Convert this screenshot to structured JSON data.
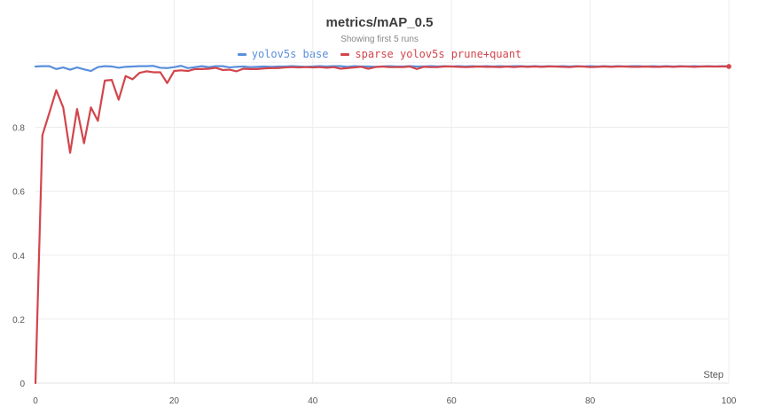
{
  "chart_data": {
    "type": "line",
    "title": "metrics/mAP_0.5",
    "subtitle": "Showing first 5 runs",
    "xlabel": "Step",
    "ylabel": "",
    "xlim": [
      0,
      100
    ],
    "ylim": [
      0,
      1.0
    ],
    "xticks": [
      0,
      20,
      40,
      60,
      80,
      100
    ],
    "yticks": [
      0,
      0.2,
      0.4,
      0.6,
      0.8
    ],
    "grid": true,
    "legend_position": "top-center",
    "series": [
      {
        "name": "yolov5s base",
        "color": "#5a8fdc",
        "x": [
          0,
          1,
          2,
          3,
          4,
          5,
          6,
          7,
          8,
          9,
          10,
          11,
          12,
          13,
          14,
          15,
          16,
          17,
          18,
          19,
          20,
          21,
          22,
          23,
          24,
          25,
          26,
          27,
          28,
          29,
          30,
          31,
          32,
          33,
          34,
          35,
          36,
          37,
          38,
          39,
          40,
          41,
          42,
          43,
          44,
          45,
          46,
          47,
          48,
          49,
          50,
          51,
          52,
          53,
          54,
          55,
          56,
          57,
          58,
          59,
          60,
          61,
          62,
          63,
          64,
          65,
          66,
          67,
          68,
          69,
          70,
          71,
          72,
          73,
          74,
          75,
          76,
          77,
          78,
          79,
          80,
          81,
          82,
          83,
          84,
          85,
          86,
          87,
          88,
          89,
          90,
          91,
          92,
          93,
          94,
          95,
          96,
          97,
          98,
          99,
          100
        ],
        "values": [
          0.99,
          0.991,
          0.991,
          0.982,
          0.987,
          0.98,
          0.987,
          0.981,
          0.976,
          0.988,
          0.991,
          0.99,
          0.986,
          0.989,
          0.99,
          0.991,
          0.991,
          0.992,
          0.986,
          0.985,
          0.988,
          0.992,
          0.985,
          0.988,
          0.991,
          0.988,
          0.991,
          0.991,
          0.987,
          0.989,
          0.99,
          0.988,
          0.989,
          0.99,
          0.989,
          0.99,
          0.99,
          0.991,
          0.99,
          0.989,
          0.99,
          0.991,
          0.99,
          0.991,
          0.991,
          0.989,
          0.991,
          0.99,
          0.99,
          0.989,
          0.99,
          0.991,
          0.99,
          0.99,
          0.991,
          0.99,
          0.99,
          0.991,
          0.99,
          0.991,
          0.99,
          0.991,
          0.99,
          0.991,
          0.99,
          0.991,
          0.99,
          0.991,
          0.99,
          0.991,
          0.991,
          0.99,
          0.991,
          0.99,
          0.991,
          0.99,
          0.991,
          0.99,
          0.991,
          0.99,
          0.991,
          0.99,
          0.991,
          0.99,
          0.991,
          0.99,
          0.991,
          0.991,
          0.99,
          0.991,
          0.99,
          0.991,
          0.99,
          0.991,
          0.99,
          0.991,
          0.99,
          0.991,
          0.99,
          0.991,
          0.991
        ]
      },
      {
        "name": "sparse yolov5s prune+quant",
        "color": "#d2454c",
        "x": [
          0,
          1,
          2,
          3,
          4,
          5,
          6,
          7,
          8,
          9,
          10,
          11,
          12,
          13,
          14,
          15,
          16,
          17,
          18,
          19,
          20,
          21,
          22,
          23,
          24,
          25,
          26,
          27,
          28,
          29,
          30,
          31,
          32,
          33,
          34,
          35,
          36,
          37,
          38,
          39,
          40,
          41,
          42,
          43,
          44,
          45,
          46,
          47,
          48,
          49,
          50,
          51,
          52,
          53,
          54,
          55,
          56,
          57,
          58,
          59,
          60,
          61,
          62,
          63,
          64,
          65,
          66,
          67,
          68,
          69,
          70,
          71,
          72,
          73,
          74,
          75,
          76,
          77,
          78,
          79,
          80,
          81,
          82,
          83,
          84,
          85,
          86,
          87,
          88,
          89,
          90,
          91,
          92,
          93,
          94,
          95,
          96,
          97,
          98,
          99,
          100
        ],
        "values": [
          0.0,
          0.775,
          0.845,
          0.916,
          0.862,
          0.72,
          0.857,
          0.75,
          0.862,
          0.82,
          0.946,
          0.948,
          0.886,
          0.96,
          0.95,
          0.97,
          0.975,
          0.972,
          0.972,
          0.938,
          0.976,
          0.978,
          0.976,
          0.982,
          0.982,
          0.983,
          0.986,
          0.979,
          0.98,
          0.975,
          0.983,
          0.982,
          0.982,
          0.984,
          0.985,
          0.985,
          0.987,
          0.988,
          0.987,
          0.988,
          0.987,
          0.988,
          0.986,
          0.988,
          0.983,
          0.985,
          0.987,
          0.989,
          0.983,
          0.988,
          0.99,
          0.988,
          0.988,
          0.988,
          0.99,
          0.982,
          0.989,
          0.988,
          0.988,
          0.99,
          0.99,
          0.989,
          0.988,
          0.989,
          0.99,
          0.989,
          0.989,
          0.988,
          0.99,
          0.988,
          0.99,
          0.989,
          0.99,
          0.989,
          0.99,
          0.99,
          0.989,
          0.988,
          0.99,
          0.99,
          0.988,
          0.989,
          0.99,
          0.989,
          0.99,
          0.99,
          0.989,
          0.989,
          0.99,
          0.989,
          0.989,
          0.99,
          0.989,
          0.99,
          0.99,
          0.989,
          0.99,
          0.99,
          0.99,
          0.99,
          0.99
        ]
      }
    ]
  }
}
